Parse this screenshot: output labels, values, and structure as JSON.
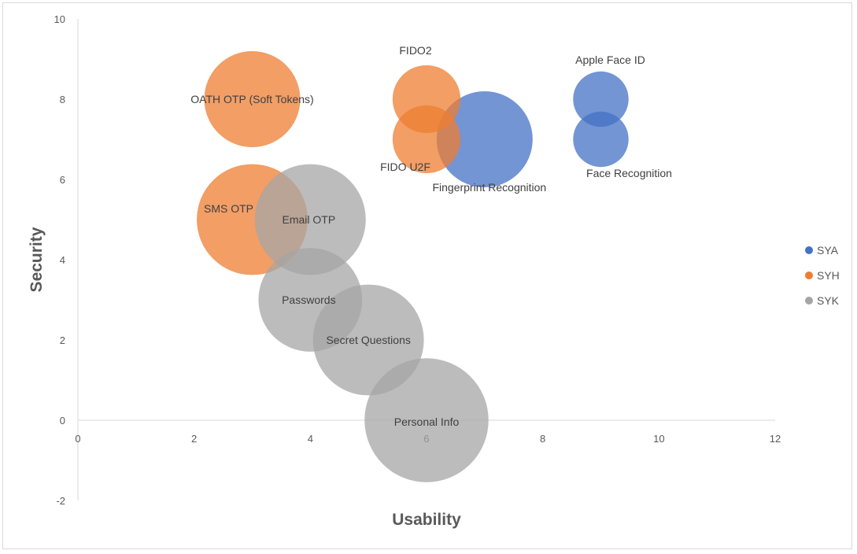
{
  "chart_data": {
    "type": "bubble",
    "xlabel": "Usability",
    "ylabel": "Security",
    "xlim": [
      0,
      12
    ],
    "ylim": [
      -2,
      10
    ],
    "xticks": [
      0,
      2,
      4,
      6,
      8,
      10,
      12
    ],
    "yticks": [
      -2,
      0,
      2,
      4,
      6,
      8,
      10
    ],
    "grid": false,
    "legend_position": "right",
    "series": [
      {
        "name": "SYA",
        "color": "#4472c4",
        "points": [
          {
            "label": "Apple Face ID",
            "x": 9,
            "y": 8,
            "size": 1
          },
          {
            "label": "Face Recognition",
            "x": 9,
            "y": 7,
            "size": 1
          },
          {
            "label": "Fingerprint Recognition",
            "x": 7,
            "y": 7,
            "size": 3
          }
        ]
      },
      {
        "name": "SYH",
        "color": "#ed7d31",
        "points": [
          {
            "label": "OATH OTP (Soft Tokens)",
            "x": 3,
            "y": 8,
            "size": 3
          },
          {
            "label": "FIDO2",
            "x": 6,
            "y": 8,
            "size": 1.5
          },
          {
            "label": "FIDO U2F",
            "x": 6,
            "y": 7,
            "size": 1.5
          },
          {
            "label": "SMS OTP",
            "x": 3,
            "y": 5,
            "size": 4
          }
        ]
      },
      {
        "name": "SYK",
        "color": "#a5a5a5",
        "points": [
          {
            "label": "Email OTP",
            "x": 4,
            "y": 5,
            "size": 4
          },
          {
            "label": "Passwords",
            "x": 4,
            "y": 3,
            "size": 3.5
          },
          {
            "label": "Secret Questions",
            "x": 5,
            "y": 2,
            "size": 4
          },
          {
            "label": "Personal Info",
            "x": 6,
            "y": 0,
            "size": 5
          }
        ]
      }
    ]
  }
}
